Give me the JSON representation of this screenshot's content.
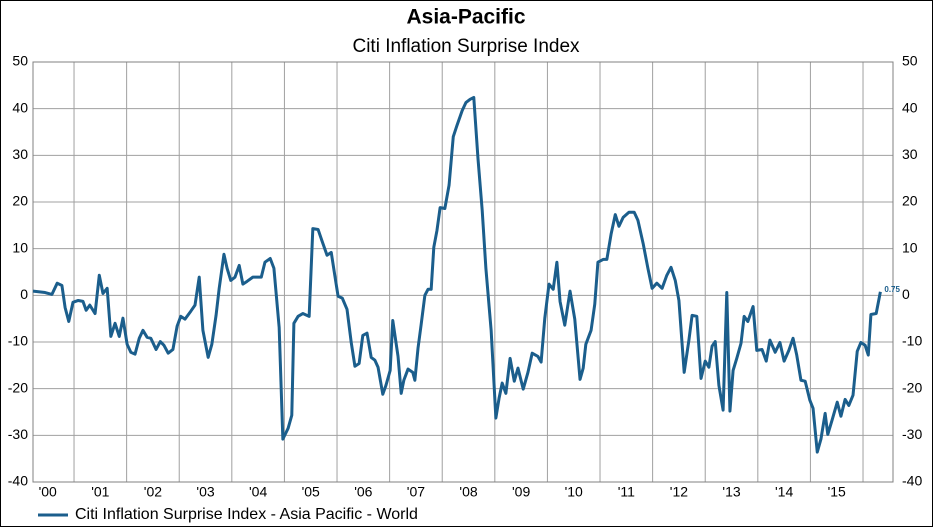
{
  "chart_data": {
    "type": "line",
    "title": "Asia-Pacific",
    "subtitle": "Citi Inflation Surprise Index",
    "xlim": [
      2000.22,
      2016.57
    ],
    "xticks": [
      {
        "value": 2000.5,
        "label": "'00"
      },
      {
        "value": 2001.5,
        "label": "'01"
      },
      {
        "value": 2002.5,
        "label": "'02"
      },
      {
        "value": 2003.5,
        "label": "'03"
      },
      {
        "value": 2004.5,
        "label": "'04"
      },
      {
        "value": 2005.5,
        "label": "'05"
      },
      {
        "value": 2006.5,
        "label": "'06"
      },
      {
        "value": 2007.5,
        "label": "'07"
      },
      {
        "value": 2008.5,
        "label": "'08"
      },
      {
        "value": 2009.5,
        "label": "'09"
      },
      {
        "value": 2010.5,
        "label": "'10"
      },
      {
        "value": 2011.5,
        "label": "'11"
      },
      {
        "value": 2012.5,
        "label": "'12"
      },
      {
        "value": 2013.5,
        "label": "'13"
      },
      {
        "value": 2014.5,
        "label": "'14"
      },
      {
        "value": 2015.5,
        "label": "'15"
      }
    ],
    "xgrid": [
      2001,
      2002,
      2003,
      2004,
      2005,
      2006,
      2007,
      2008,
      2009,
      2010,
      2011,
      2012,
      2013,
      2014,
      2015,
      2016
    ],
    "ylim": [
      -40,
      50
    ],
    "yticks": [
      -40,
      -30,
      -20,
      -10,
      0,
      10,
      20,
      30,
      40,
      50
    ],
    "y2lim": [
      -40,
      50
    ],
    "y2ticks": [
      -40,
      -30,
      -20,
      -10,
      0,
      10,
      20,
      30,
      40,
      50
    ],
    "grid": true,
    "legend": "bottom-left",
    "x": [
      2000.22,
      2000.45,
      2000.58,
      2000.68,
      2000.77,
      2000.83,
      2000.9,
      2000.98,
      2001.08,
      2001.17,
      2001.23,
      2001.3,
      2001.4,
      2001.48,
      2001.55,
      2001.63,
      2001.7,
      2001.78,
      2001.86,
      2001.93,
      2002.01,
      2002.08,
      2002.16,
      2002.24,
      2002.31,
      2002.39,
      2002.46,
      2002.56,
      2002.64,
      2002.71,
      2002.79,
      2002.88,
      2002.96,
      2003.03,
      2003.11,
      2003.22,
      2003.3,
      2003.38,
      2003.45,
      2003.55,
      2003.62,
      2003.7,
      2003.76,
      2003.85,
      2003.91,
      2003.98,
      2004.06,
      2004.14,
      2004.21,
      2004.29,
      2004.4,
      2004.56,
      2004.63,
      2004.73,
      2004.8,
      2004.9,
      2004.97,
      2005.07,
      2005.14,
      2005.18,
      2005.26,
      2005.35,
      2005.47,
      2005.54,
      2005.64,
      2005.71,
      2005.81,
      2005.89,
      2005.96,
      2006.02,
      2006.1,
      2006.19,
      2006.27,
      2006.34,
      2006.42,
      2006.49,
      2006.57,
      2006.65,
      2006.72,
      2006.78,
      2006.87,
      2006.93,
      2007.01,
      2007.06,
      2007.16,
      2007.22,
      2007.27,
      2007.35,
      2007.44,
      2007.48,
      2007.54,
      2007.6,
      2007.67,
      2007.73,
      2007.79,
      2007.84,
      2007.9,
      2007.96,
      2008.05,
      2008.13,
      2008.21,
      2008.28,
      2008.38,
      2008.45,
      2008.53,
      2008.6,
      2008.68,
      2008.76,
      2008.83,
      2008.93,
      2009.02,
      2009.08,
      2009.14,
      2009.21,
      2009.29,
      2009.37,
      2009.44,
      2009.54,
      2009.63,
      2009.71,
      2009.82,
      2009.88,
      2009.95,
      2010.03,
      2010.11,
      2010.18,
      2010.24,
      2010.33,
      2010.43,
      2010.52,
      2010.62,
      2010.68,
      2010.73,
      2010.83,
      2010.9,
      2010.96,
      2011.06,
      2011.13,
      2011.21,
      2011.29,
      2011.36,
      2011.44,
      2011.55,
      2011.65,
      2011.72,
      2011.82,
      2011.91,
      2011.99,
      2012.08,
      2012.18,
      2012.27,
      2012.35,
      2012.43,
      2012.5,
      2012.6,
      2012.69,
      2012.75,
      2012.84,
      2012.92,
      2013,
      2013.07,
      2013.13,
      2013.19,
      2013.26,
      2013.34,
      2013.41,
      2013.47,
      2013.53,
      2013.6,
      2013.68,
      2013.74,
      2013.81,
      2013.91,
      2013.98,
      2014.08,
      2014.16,
      2014.23,
      2014.33,
      2014.42,
      2014.5,
      2014.59,
      2014.67,
      2014.74,
      2014.82,
      2014.9,
      2014.99,
      2015.05,
      2015.13,
      2015.2,
      2015.28,
      2015.33,
      2015.41,
      2015.51,
      2015.58,
      2015.66,
      2015.73,
      2015.81,
      2015.89,
      2015.96,
      2016.04,
      2016.1,
      2016.15,
      2016.25,
      2016.33
    ],
    "series": [
      {
        "name": "Citi Inflation Surprise Index - Asia Pacific - World",
        "color": "#1b5e8c",
        "values": [
          0.9,
          0.6,
          0.2,
          2.6,
          2.1,
          -2.6,
          -5.6,
          -1.5,
          -1.1,
          -1.3,
          -3.2,
          -2.1,
          -3.9,
          4.3,
          0.4,
          1.5,
          -8.8,
          -6,
          -8.8,
          -4.9,
          -10.5,
          -12.2,
          -12.6,
          -9.2,
          -7.5,
          -9,
          -9.2,
          -11.6,
          -9.9,
          -10.7,
          -12.4,
          -11.6,
          -6.6,
          -4.5,
          -5.1,
          -3.4,
          -2.1,
          3.9,
          -7.5,
          -13.3,
          -10.5,
          -4.3,
          1.5,
          8.8,
          5.8,
          3.2,
          3.9,
          6.4,
          2.4,
          3,
          3.9,
          3.9,
          7.1,
          7.9,
          5.8,
          -6.9,
          -30.8,
          -28.5,
          -25.7,
          -6,
          -4.5,
          -3.9,
          -4.5,
          14.3,
          14.1,
          11.8,
          8.6,
          9.2,
          4.1,
          -0.2,
          -0.6,
          -3,
          -10.1,
          -15.2,
          -14.6,
          -8.6,
          -8.1,
          -13.3,
          -13.9,
          -15.4,
          -21.2,
          -19.3,
          -16.1,
          -5.4,
          -13.1,
          -21,
          -18.2,
          -15.8,
          -16.5,
          -18.2,
          -11.3,
          -6.2,
          0,
          1.3,
          1.3,
          10.3,
          13.9,
          18.8,
          18.6,
          23.6,
          34,
          36.4,
          39.6,
          41.3,
          42,
          42.4,
          29.3,
          18.2,
          5.8,
          -7.5,
          -26.3,
          -22.1,
          -18.8,
          -21,
          -13.5,
          -18.4,
          -15.6,
          -20.1,
          -16.5,
          -12.4,
          -13.1,
          -14.3,
          -4.9,
          2.4,
          1.3,
          7.1,
          -1.3,
          -6.4,
          0.9,
          -5.1,
          -18,
          -15.6,
          -10.5,
          -7.5,
          -1.9,
          7.1,
          7.7,
          7.7,
          13.1,
          17.3,
          14.8,
          16.7,
          17.8,
          17.8,
          16.1,
          11.1,
          5.8,
          1.5,
          2.6,
          1.5,
          4.3,
          6,
          3.2,
          -1.1,
          -16.5,
          -9.6,
          -4.3,
          -4.5,
          -17.8,
          -14.1,
          -15.4,
          -10.9,
          -9.9,
          -19.3,
          -24.6,
          0.6,
          -24.8,
          -16.1,
          -13.5,
          -10.3,
          -4.5,
          -5.6,
          -2.4,
          -11.8,
          -11.6,
          -14.1,
          -9.6,
          -12.2,
          -10.1,
          -14.1,
          -11.8,
          -9.2,
          -12.8,
          -18.2,
          -18.4,
          -22.5,
          -24.2,
          -33.6,
          -30.8,
          -25.3,
          -29.8,
          -26.8,
          -22.9,
          -25.9,
          -22.3,
          -23.6,
          -21.4,
          -12,
          -10.1,
          -10.7,
          -12.8,
          -4.1,
          -3.9,
          0.75
        ],
        "value_labels": [
          null,
          null,
          null,
          null,
          null,
          null,
          null,
          null,
          null,
          null,
          null,
          null,
          null,
          null,
          null,
          null,
          null,
          null,
          null,
          null,
          null,
          null,
          null,
          null,
          null,
          null,
          null,
          null,
          null,
          null,
          null,
          null,
          null,
          null,
          null,
          null,
          null,
          null,
          null,
          null,
          null,
          null,
          null,
          null,
          null,
          null,
          null,
          null,
          null,
          null,
          null,
          null,
          null,
          null,
          null,
          null,
          null,
          null,
          null,
          null,
          null,
          null,
          null,
          null,
          null,
          null,
          null,
          null,
          null,
          null,
          null,
          null,
          null,
          null,
          null,
          null,
          null,
          null,
          null,
          null,
          null,
          null,
          null,
          null,
          null,
          null,
          null,
          null,
          null,
          null,
          null,
          null,
          null,
          null,
          null,
          null,
          null,
          null,
          null,
          null,
          null,
          null,
          null,
          null,
          null,
          null,
          null,
          null,
          null,
          null,
          null,
          null,
          null,
          null,
          null,
          null,
          null,
          null,
          null,
          null,
          null,
          null,
          null,
          null,
          null,
          null,
          null,
          null,
          null,
          null,
          null,
          null,
          null,
          null,
          null,
          null,
          null,
          null,
          null,
          null,
          null,
          null,
          null,
          null,
          null,
          null,
          null,
          null,
          null,
          null,
          null,
          null,
          null,
          null,
          null,
          null,
          null,
          null,
          null,
          null,
          null,
          null,
          null,
          null,
          null,
          null,
          null,
          null,
          null,
          null,
          null,
          null,
          null,
          null,
          null,
          null,
          null,
          null,
          null,
          null,
          null,
          null,
          null,
          null,
          null,
          null,
          null,
          null,
          null,
          null,
          null,
          null,
          null,
          null,
          null,
          null,
          null,
          null,
          null,
          null,
          null,
          null,
          null,
          "0.75"
        ]
      }
    ]
  }
}
